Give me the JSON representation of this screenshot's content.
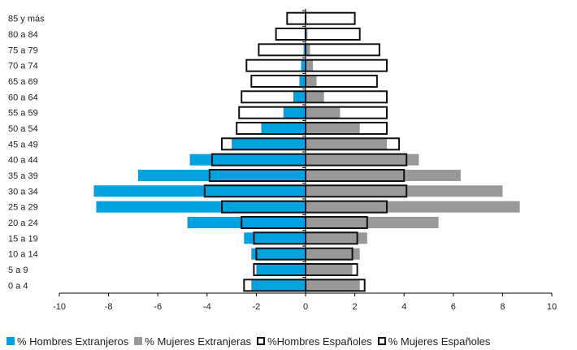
{
  "chart_data": {
    "type": "bar",
    "orientation": "horizontal",
    "categories": [
      "0 a 4",
      "5 a 9",
      "10 a 14",
      "15 a 19",
      "20 a 24",
      "25 a 29",
      "30 a 34",
      "35 a 39",
      "40 a 44",
      "45 a 49",
      "50 a 54",
      "55 a 59",
      "60 a 64",
      "65 a 69",
      "70 a 74",
      "75 a 79",
      "80 a 84",
      "85 y más"
    ],
    "series": [
      {
        "name": "% Hombres Extranjeros",
        "style": "filled",
        "color": "#00a3e0",
        "values": [
          -2.2,
          -2.0,
          -2.2,
          -2.5,
          -4.8,
          -8.5,
          -8.6,
          -6.8,
          -4.7,
          -3.0,
          -1.8,
          -0.9,
          -0.5,
          -0.25,
          -0.18,
          -0.08,
          -0.04,
          -0.02
        ]
      },
      {
        "name": "% Mujeres Extranjeras",
        "style": "filled",
        "color": "#999999",
        "values": [
          2.2,
          1.9,
          2.2,
          2.5,
          5.4,
          8.7,
          8.0,
          6.3,
          4.6,
          3.3,
          2.2,
          1.4,
          0.75,
          0.45,
          0.3,
          0.18,
          0.08,
          0.04
        ]
      },
      {
        "name": "%Hombres Españoles",
        "style": "outline",
        "color": "#111111",
        "values": [
          -2.5,
          -2.1,
          -2.0,
          -2.1,
          -2.6,
          -3.4,
          -4.1,
          -3.9,
          -3.8,
          -3.4,
          -2.8,
          -2.7,
          -2.6,
          -2.2,
          -2.4,
          -1.9,
          -1.2,
          -0.75
        ]
      },
      {
        "name": "% Mujeres Españoles",
        "style": "outline",
        "color": "#111111",
        "values": [
          2.4,
          2.1,
          1.9,
          2.1,
          2.5,
          3.3,
          4.1,
          4.0,
          4.1,
          3.8,
          3.3,
          3.3,
          3.3,
          2.9,
          3.3,
          3.0,
          2.2,
          2.0
        ]
      }
    ],
    "xlim": [
      -10,
      10
    ],
    "x_ticks": [
      -10,
      -8,
      -6,
      -4,
      -2,
      0,
      2,
      4,
      6,
      8,
      10
    ],
    "x_tick_labels": [
      "-10",
      "-8",
      "-6",
      "-4",
      "-2",
      "0",
      "2",
      "4",
      "6",
      "8",
      "10"
    ],
    "grid": false,
    "legend_position": "bottom",
    "title": "",
    "xlabel": "",
    "ylabel": ""
  }
}
